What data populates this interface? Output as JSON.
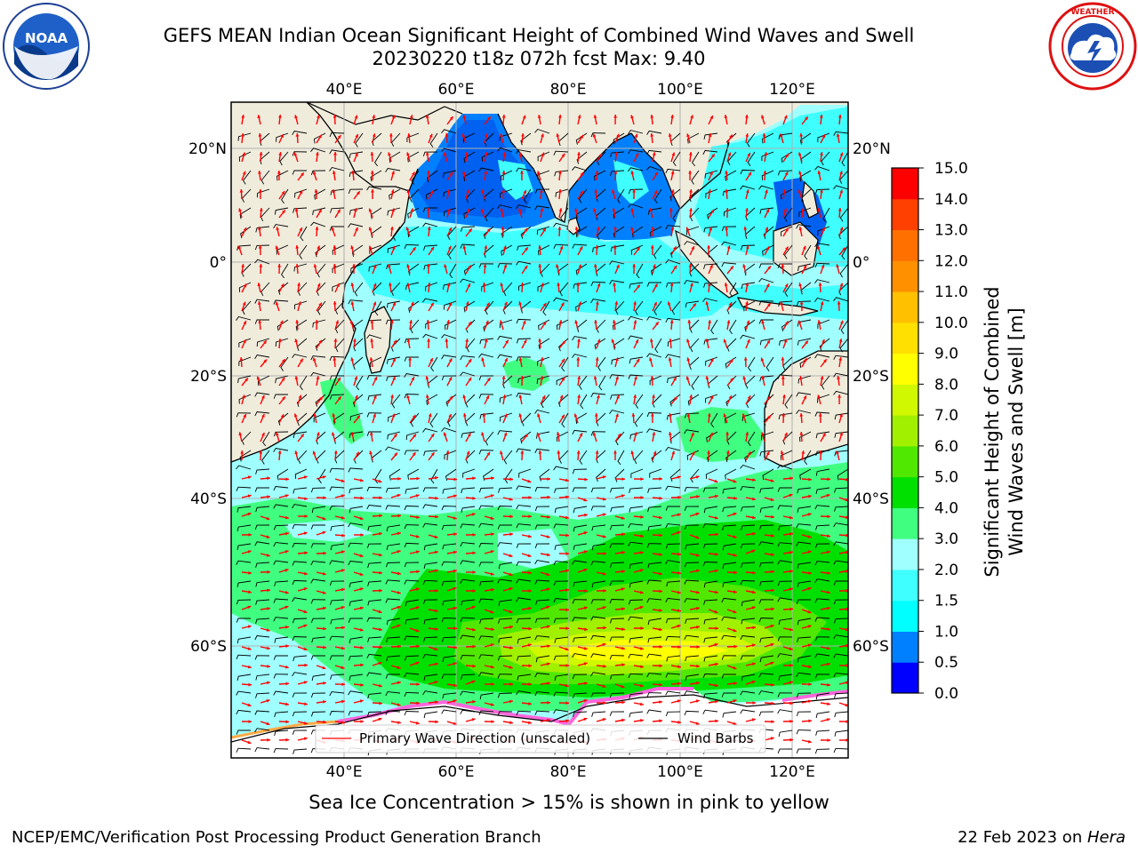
{
  "title": {
    "line1": "GEFS MEAN Indian Ocean Significant Height of Combined Wind Waves and Swell",
    "line2": "20230220 t18z 072h fcst   Max: 9.40"
  },
  "logos": {
    "left": {
      "name": "noaa-logo",
      "text": "NOAA",
      "ring_text": "NATIONAL OCEANIC AND ATMOSPHERIC ADMINISTRATION · U.S. DEPARTMENT OF COMMERCE"
    },
    "right": {
      "name": "nws-logo",
      "ring_text": "NATIONAL WEATHER SERVICE"
    }
  },
  "map": {
    "longitude_ticks": [
      "40°E",
      "60°E",
      "80°E",
      "100°E",
      "120°E"
    ],
    "latitude_ticks_left": [
      "20°N",
      "0°",
      "20°S",
      "40°S",
      "60°S"
    ],
    "latitude_ticks_right": [
      "20°N",
      "0°",
      "20°S",
      "40°S",
      "60°S"
    ],
    "lon_range": [
      20,
      130
    ],
    "lat_range": [
      -72,
      28
    ],
    "land_color": "#efecdc",
    "legend": {
      "wave_direction": "Primary Wave Direction (unscaled)",
      "wind_barbs": "Wind Barbs",
      "wave_color": "#ff0000",
      "barb_color": "#000000"
    }
  },
  "colorbar": {
    "label_line1": "Significant Height of Combined",
    "label_line2": "Wind Waves and Swell [m]",
    "ticks": [
      "0.0",
      "0.5",
      "1.0",
      "1.5",
      "2.0",
      "3.0",
      "4.0",
      "5.0",
      "6.0",
      "7.0",
      "8.0",
      "9.0",
      "10.0",
      "11.0",
      "12.0",
      "13.0",
      "14.0",
      "15.0"
    ],
    "colors": [
      "#0000ff",
      "#0080ff",
      "#00ffff",
      "#40ffff",
      "#a0ffff",
      "#40ff80",
      "#00e000",
      "#50e800",
      "#a0f000",
      "#d0f800",
      "#ffff00",
      "#ffe000",
      "#ffc000",
      "#ff9000",
      "#ff7000",
      "#ff4000",
      "#ff0000"
    ]
  },
  "note": "Sea Ice Concentration > 15% is shown in pink to yellow",
  "footer": {
    "left": "NCEP/EMC/Verification Post Processing Product Generation Branch",
    "date": "22 Feb 2023 on ",
    "host": "Hera"
  }
}
